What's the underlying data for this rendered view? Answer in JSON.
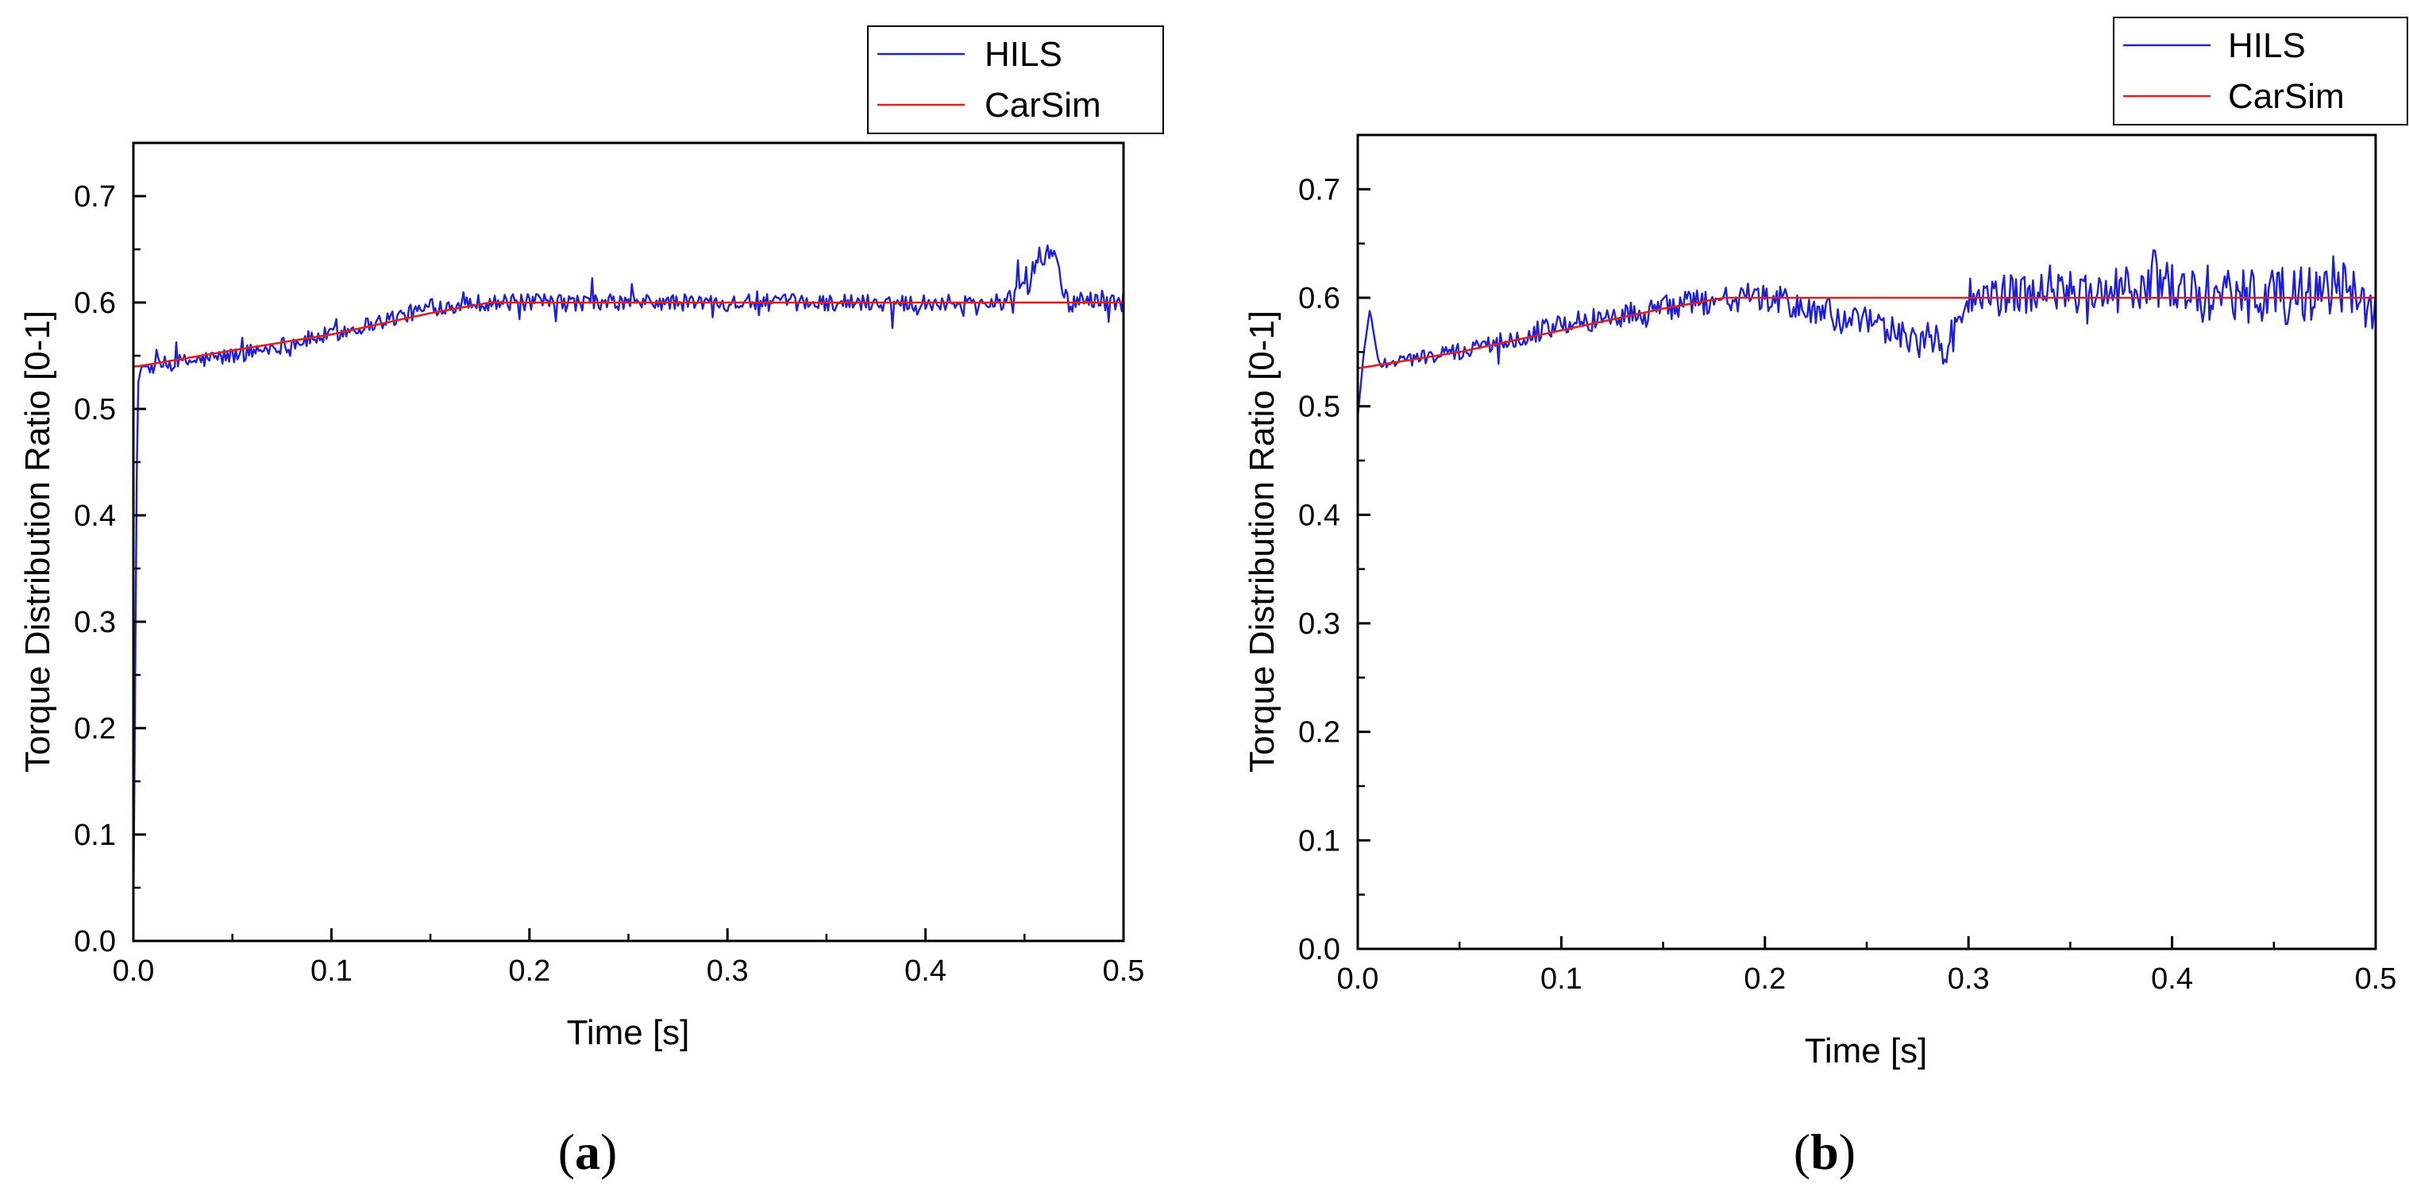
{
  "colors": {
    "hils": "#1f1fd8",
    "carsim": "#e0201e",
    "axis": "#000000"
  },
  "chart_data": [
    {
      "type": "line",
      "panel_label": "a",
      "xlabel": "Time [s]",
      "ylabel": "Torque Distribution Ratio [0-1]",
      "xlim": [
        0.0,
        0.5
      ],
      "ylim": [
        0.0,
        0.75
      ],
      "xticks": [
        "0.0",
        "0.1",
        "0.2",
        "0.3",
        "0.4",
        "0.5"
      ],
      "yticks": [
        "0.0",
        "0.1",
        "0.2",
        "0.3",
        "0.4",
        "0.5",
        "0.6",
        "0.7"
      ],
      "legend": [
        "HILS",
        "CarSim"
      ],
      "series": [
        {
          "name": "HILS",
          "noise": "mostly +/-0.01 with occasional spikes up to +/-0.03",
          "x": [
            0.0,
            0.002,
            0.004,
            0.006,
            0.01,
            0.05,
            0.1,
            0.12,
            0.15,
            0.17,
            0.2,
            0.3,
            0.4,
            0.44,
            0.465,
            0.47,
            0.5
          ],
          "y": [
            0.02,
            0.52,
            0.54,
            0.54,
            0.54,
            0.55,
            0.57,
            0.58,
            0.595,
            0.6,
            0.6,
            0.6,
            0.6,
            0.6,
            0.652,
            0.6,
            0.6
          ]
        },
        {
          "name": "CarSim",
          "x": [
            0.0,
            0.002,
            0.05,
            0.1,
            0.15,
            0.18,
            0.2,
            0.3,
            0.4,
            0.5
          ],
          "y": [
            0.54,
            0.54,
            0.555,
            0.57,
            0.59,
            0.6,
            0.6,
            0.6,
            0.6,
            0.6
          ]
        }
      ]
    },
    {
      "type": "line",
      "panel_label": "b",
      "xlabel": "Time [s]",
      "ylabel": "Torque Distribution Ratio [0-1]",
      "xlim": [
        0.0,
        0.5
      ],
      "ylim": [
        0.0,
        0.75
      ],
      "xticks": [
        "0.0",
        "0.1",
        "0.2",
        "0.3",
        "0.4",
        "0.5"
      ],
      "yticks": [
        "0.0",
        "0.1",
        "0.2",
        "0.3",
        "0.4",
        "0.5",
        "0.6",
        "0.7"
      ],
      "legend": [
        "HILS",
        "CarSim"
      ],
      "series": [
        {
          "name": "HILS",
          "noise": "+/-0.01 early, growing to +/-0.04 near 0.5 s",
          "x": [
            0.0,
            0.003,
            0.006,
            0.01,
            0.05,
            0.1,
            0.15,
            0.18,
            0.2,
            0.29,
            0.3,
            0.4,
            0.5
          ],
          "y": [
            0.49,
            0.55,
            0.59,
            0.54,
            0.55,
            0.575,
            0.59,
            0.6,
            0.6,
            0.555,
            0.6,
            0.61,
            0.6
          ]
        },
        {
          "name": "CarSim",
          "x": [
            0.0,
            0.05,
            0.1,
            0.15,
            0.18,
            0.2,
            0.3,
            0.4,
            0.5
          ],
          "y": [
            0.535,
            0.55,
            0.57,
            0.59,
            0.6,
            0.6,
            0.6,
            0.6,
            0.6
          ]
        }
      ]
    }
  ]
}
